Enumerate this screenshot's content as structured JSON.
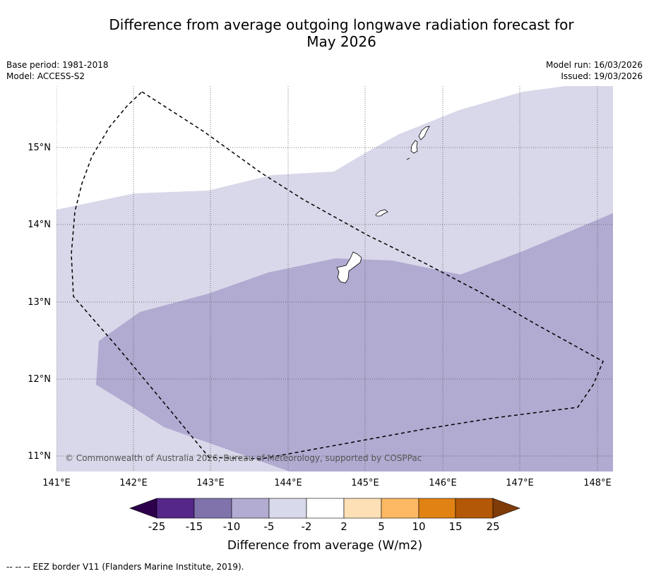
{
  "title": {
    "line1": "Difference from average outgoing longwave radiation forecast for",
    "line2": "May 2026"
  },
  "meta": {
    "base_period": "Base period: 1981-2018",
    "model": "Model: ACCESS-S2",
    "model_run": "Model run: 16/03/2026",
    "issued": "Issued: 19/03/2026"
  },
  "map": {
    "lon_labels": [
      "141°E",
      "142°E",
      "143°E",
      "144°E",
      "145°E",
      "146°E",
      "147°E",
      "148°E"
    ],
    "lat_labels": [
      "15°N",
      "14°N",
      "13°N",
      "12°N",
      "11°N"
    ],
    "copyright": "© Commonwealth of Australia 2026, Bureau of Meteorology, supported by COSPPac",
    "colors": {
      "anom_minus5_to_minus2": "#d8d8ea",
      "anom_minus10_to_minus5": "#b1aad1",
      "eez_border": "#000000"
    }
  },
  "colorbar": {
    "title": "Difference from average (W/m2)",
    "tick_labels": [
      "-25",
      "-15",
      "-10",
      "-5",
      "-2",
      "2",
      "5",
      "10",
      "15",
      "25"
    ],
    "segment_colors": [
      "#2d004b",
      "#542788",
      "#8073ac",
      "#b2abd2",
      "#d8daeb",
      "#ffffff",
      "#fee0b6",
      "#fdb863",
      "#e08214",
      "#b35806",
      "#7f3b08"
    ]
  },
  "footnote": "--  --  -- EEZ border V11 (Flanders Marine Institute, 2019)."
}
